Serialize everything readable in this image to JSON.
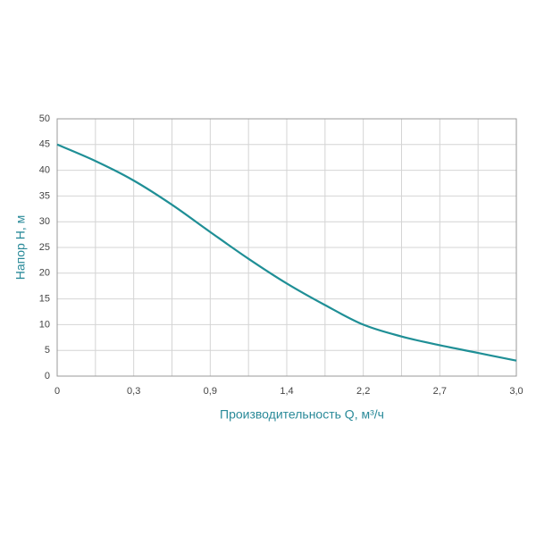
{
  "chart_data": {
    "type": "line",
    "xlabel": "Производительность Q, м³/ч",
    "ylabel": "Напор H, м",
    "categories": [
      "0",
      null,
      "0,3",
      null,
      "0,9",
      null,
      "1,4",
      null,
      "2,2",
      null,
      "2,7",
      null,
      "3,0"
    ],
    "values": [
      45,
      41.8,
      38,
      33.3,
      28,
      22.8,
      18,
      13.8,
      10,
      7.7,
      6,
      4.5,
      3
    ],
    "color": "#1f8f96",
    "ylim": [
      0,
      50
    ],
    "yticks": [
      0,
      5,
      10,
      15,
      20,
      25,
      30,
      35,
      40,
      45,
      50
    ],
    "grid": true
  }
}
